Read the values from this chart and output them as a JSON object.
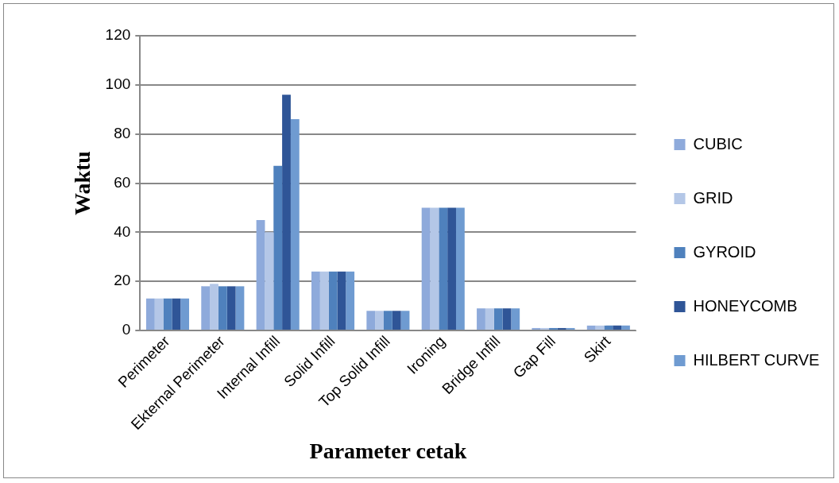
{
  "chart_data": {
    "type": "bar",
    "xlabel": "Parameter cetak",
    "ylabel": "Waktu",
    "categories": [
      "Perimeter",
      "Ekternal Perimeter",
      "Internal Infill",
      "Solid Infill",
      "Top Solid Infill",
      "Ironing",
      "Bridge Infill",
      "Gap Fill",
      "Skirt"
    ],
    "series": [
      {
        "name": "CUBIC",
        "color": "#8eaadb",
        "values": [
          13,
          18,
          45,
          24,
          8,
          50,
          9,
          1,
          2
        ]
      },
      {
        "name": "GRID",
        "color": "#b4c7e7",
        "values": [
          13,
          19,
          40,
          24,
          8,
          50,
          9,
          1,
          2
        ]
      },
      {
        "name": "GYROID",
        "color": "#4f81bd",
        "values": [
          13,
          18,
          67,
          24,
          8,
          50,
          9,
          1,
          2
        ]
      },
      {
        "name": "HONEYCOMB",
        "color": "#2f5597",
        "values": [
          13,
          18,
          96,
          24,
          8,
          50,
          9,
          1,
          2
        ]
      },
      {
        "name": "HILBERT CURVE",
        "color": "#6f9bd1",
        "values": [
          13,
          18,
          86,
          24,
          8,
          50,
          9,
          1,
          2
        ]
      }
    ],
    "ylim": [
      0,
      120
    ],
    "yticks": [
      0,
      20,
      40,
      60,
      80,
      100,
      120
    ],
    "grid": "y",
    "legend": "right"
  }
}
